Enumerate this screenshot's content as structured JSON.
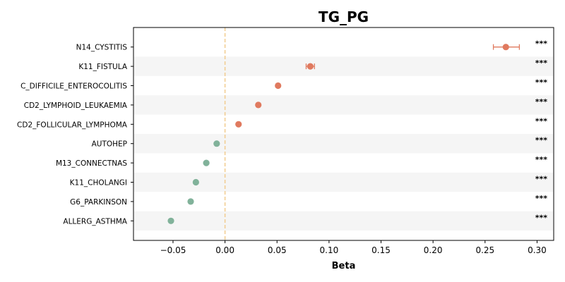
{
  "chart_data": {
    "type": "scatter",
    "title": "TG_PG",
    "xlabel": "Beta",
    "ylabel": "",
    "xlim": [
      -0.088,
      0.316
    ],
    "xticks": [
      -0.05,
      0.0,
      0.05,
      0.1,
      0.15,
      0.2,
      0.25,
      0.3
    ],
    "xtick_labels": [
      "−0.05",
      "0.00",
      "0.05",
      "0.10",
      "0.15",
      "0.20",
      "0.25",
      "0.30"
    ],
    "reference_line_x": 0,
    "grid": false,
    "alternating_row_shading": true,
    "colors": {
      "positive": "#e07a5f",
      "negative": "#81b29a",
      "reference_line": "#f2cc8f",
      "row_shade": "#f5f5f5"
    },
    "points": [
      {
        "label": "N14_CYSTITIS",
        "beta": 0.27,
        "ci_low": 0.258,
        "ci_high": 0.283,
        "significance": "***"
      },
      {
        "label": "K11_FISTULA",
        "beta": 0.082,
        "ci_low": 0.078,
        "ci_high": 0.086,
        "significance": "***"
      },
      {
        "label": "C_DIFFICILE_ENTEROCOLITIS",
        "beta": 0.051,
        "ci_low": 0.05,
        "ci_high": 0.052,
        "significance": "***"
      },
      {
        "label": "CD2_LYMPHOID_LEUKAEMIA",
        "beta": 0.032,
        "ci_low": 0.031,
        "ci_high": 0.033,
        "significance": "***"
      },
      {
        "label": "CD2_FOLLICULAR_LYMPHOMA",
        "beta": 0.013,
        "ci_low": 0.012,
        "ci_high": 0.014,
        "significance": "***"
      },
      {
        "label": "AUTOHEP",
        "beta": -0.008,
        "ci_low": -0.009,
        "ci_high": -0.007,
        "significance": "***"
      },
      {
        "label": "M13_CONNECTNAS",
        "beta": -0.018,
        "ci_low": -0.019,
        "ci_high": -0.017,
        "significance": "***"
      },
      {
        "label": "K11_CHOLANGI",
        "beta": -0.028,
        "ci_low": -0.029,
        "ci_high": -0.027,
        "significance": "***"
      },
      {
        "label": "G6_PARKINSON",
        "beta": -0.033,
        "ci_low": -0.034,
        "ci_high": -0.032,
        "significance": "***"
      },
      {
        "label": "ALLERG_ASTHMA",
        "beta": -0.052,
        "ci_low": -0.053,
        "ci_high": -0.051,
        "significance": "***"
      }
    ]
  }
}
